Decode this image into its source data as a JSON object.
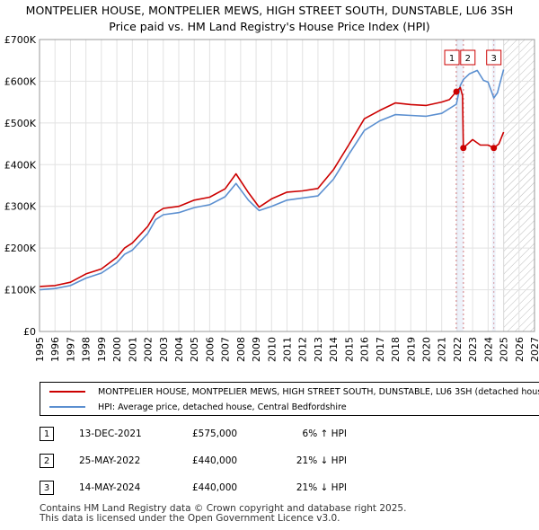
{
  "title_line1": "MONTPELIER HOUSE, MONTPELIER MEWS, HIGH STREET SOUTH, DUNSTABLE, LU6 3SH",
  "title_line2": "Price paid vs. HM Land Registry's House Price Index (HPI)",
  "chart_data": {
    "type": "line",
    "title": "Price paid vs. HM Land Registry's House Price Index (HPI)",
    "xlabel": "",
    "ylabel": "",
    "xlim": [
      1995,
      2027
    ],
    "ylim": [
      0,
      700000
    ],
    "x_ticks": [
      "1995",
      "1996",
      "1997",
      "1998",
      "1999",
      "2000",
      "2001",
      "2002",
      "2003",
      "2004",
      "2005",
      "2006",
      "2007",
      "2008",
      "2009",
      "2010",
      "2011",
      "2012",
      "2013",
      "2014",
      "2015",
      "2016",
      "2017",
      "2018",
      "2019",
      "2020",
      "2021",
      "2022",
      "2023",
      "2024",
      "2025",
      "2026",
      "2027"
    ],
    "y_ticks": [
      {
        "value": 0,
        "label": "£0"
      },
      {
        "value": 100000,
        "label": "£100K"
      },
      {
        "value": 200000,
        "label": "£200K"
      },
      {
        "value": 300000,
        "label": "£300K"
      },
      {
        "value": 400000,
        "label": "£400K"
      },
      {
        "value": 500000,
        "label": "£500K"
      },
      {
        "value": 600000,
        "label": "£600K"
      },
      {
        "value": 700000,
        "label": "£700K"
      }
    ],
    "grid": true,
    "projection_start": 2025.0,
    "series": [
      {
        "name": "MONTPELIER HOUSE, MONTPELIER MEWS, HIGH STREET SOUTH, DUNSTABLE, LU6 3SH (detached house)",
        "color": "#cc0000",
        "x": [
          1995.0,
          1996.0,
          1997.0,
          1998.0,
          1999.0,
          2000.0,
          2000.5,
          2001.0,
          2002.0,
          2002.5,
          2003.0,
          2004.0,
          2005.0,
          2006.0,
          2007.0,
          2007.7,
          2008.5,
          2009.2,
          2010.0,
          2011.0,
          2012.0,
          2013.0,
          2014.0,
          2015.0,
          2016.0,
          2017.0,
          2018.0,
          2019.0,
          2020.0,
          2021.0,
          2021.5,
          2021.95,
          2022.2,
          2022.35,
          2022.4,
          2023.0,
          2023.5,
          2024.0,
          2024.37,
          2024.7,
          2025.0
        ],
        "y": [
          108000,
          110000,
          118000,
          138000,
          150000,
          178000,
          200000,
          212000,
          252000,
          283000,
          295000,
          300000,
          315000,
          322000,
          342000,
          378000,
          333000,
          298000,
          318000,
          334000,
          337000,
          343000,
          388000,
          448000,
          510000,
          530000,
          548000,
          544000,
          542000,
          550000,
          556000,
          575000,
          585000,
          565000,
          440000,
          460000,
          447000,
          447000,
          440000,
          450000,
          478000
        ]
      },
      {
        "name": "HPI: Average price, detached house, Central Bedfordshire",
        "color": "#5b8fd0",
        "x": [
          1995.0,
          1996.0,
          1997.0,
          1998.0,
          1999.0,
          2000.0,
          2000.5,
          2001.0,
          2002.0,
          2002.5,
          2003.0,
          2004.0,
          2005.0,
          2006.0,
          2007.0,
          2007.7,
          2008.5,
          2009.2,
          2010.0,
          2011.0,
          2012.0,
          2013.0,
          2014.0,
          2015.0,
          2016.0,
          2017.0,
          2018.0,
          2019.0,
          2020.0,
          2021.0,
          2021.95,
          2022.2,
          2022.4,
          2022.8,
          2023.3,
          2023.7,
          2024.0,
          2024.37,
          2024.6,
          2025.0
        ],
        "y": [
          100000,
          103000,
          110000,
          128000,
          140000,
          165000,
          185000,
          195000,
          235000,
          268000,
          280000,
          285000,
          297000,
          304000,
          323000,
          355000,
          315000,
          290000,
          300000,
          315000,
          320000,
          325000,
          365000,
          425000,
          482000,
          505000,
          520000,
          518000,
          516000,
          523000,
          545000,
          590000,
          604000,
          618000,
          626000,
          602000,
          598000,
          560000,
          572000,
          628000
        ]
      }
    ],
    "transactions": [
      {
        "label": "1",
        "x": 2021.95,
        "price": 575000
      },
      {
        "label": "2",
        "x": 2022.4,
        "price": 440000
      },
      {
        "label": "3",
        "x": 2024.37,
        "price": 440000
      }
    ]
  },
  "legend": {
    "series1": "MONTPELIER HOUSE, MONTPELIER MEWS, HIGH STREET SOUTH, DUNSTABLE, LU6 3SH (detached house)",
    "series2": "HPI: Average price, detached house, Central Bedfordshire",
    "color1": "#cc0000",
    "color2": "#5b8fd0"
  },
  "transactions_table": [
    {
      "num": "1",
      "date": "13-DEC-2021",
      "price": "£575,000",
      "rel": "6% ↑ HPI"
    },
    {
      "num": "2",
      "date": "25-MAY-2022",
      "price": "£440,000",
      "rel": "21% ↓ HPI"
    },
    {
      "num": "3",
      "date": "14-MAY-2024",
      "price": "£440,000",
      "rel": "21% ↓ HPI"
    }
  ],
  "footer_line1": "Contains HM Land Registry data © Crown copyright and database right 2025.",
  "footer_line2": "This data is licensed under the Open Government Licence v3.0."
}
